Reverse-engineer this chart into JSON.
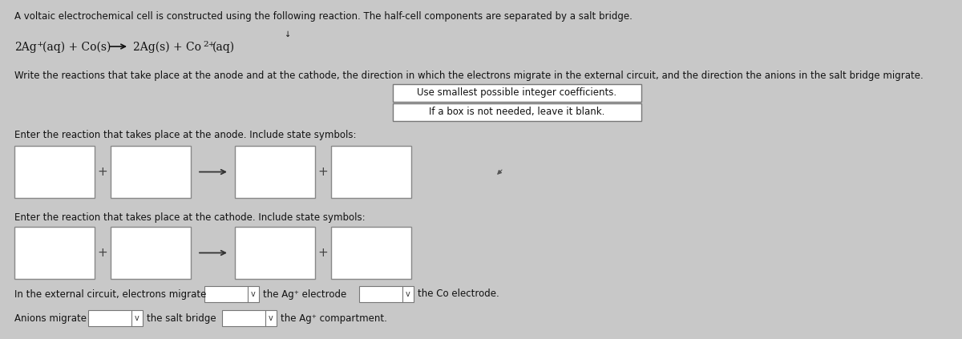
{
  "bg_color": "#c8c8c8",
  "box_color": "#ffffff",
  "box_border_color": "#888888",
  "text_color": "#111111",
  "title_line1": "A voltaic electrochemical cell is constructed using the following reaction. The half-cell components are separated by a salt bridge.",
  "hint_box_line1": "Use smallest possible integer coefficients.",
  "hint_box_line2": "If a box is not needed, leave it blank.",
  "anode_label": "Enter the reaction that takes place at the anode. Include state symbols:",
  "cathode_label": "Enter the reaction that takes place at the cathode. Include state symbols:",
  "electrons_line": "In the external circuit, electrons migrate",
  "electrons_mid": "the Ag⁺ electrode",
  "electrons_end": "the Co electrode.",
  "anions_line": "Anions migrate",
  "anions_mid": "the salt bridge",
  "anions_end": "the Ag⁺ compartment.",
  "instruction_line": "Write the reactions that take place at the anode and at the cathode, the direction in which the electrons migrate in the external circuit, and the direction the anions in the salt bridge migrate."
}
